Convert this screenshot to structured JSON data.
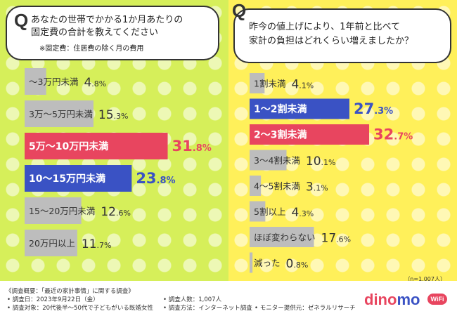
{
  "left": {
    "q_mark": "Q",
    "question_line1": "あなたの世帯でかかる1か月あたりの",
    "question_line2": "固定費の合計を教えてください",
    "note": "※固定費：住居費の除く月の費用"
  },
  "right": {
    "q_mark": "Q",
    "question_line1": "昨今の値上げにより、1年前と比べて",
    "question_line2": "家計の負担はどれくらい増えましたか？",
    "sample": "（n=1,007人）"
  },
  "colors": {
    "gray": "#bdbdbd",
    "red": "#e8455f",
    "blue": "#3a52c4"
  },
  "chart_data": [
    {
      "type": "bar",
      "orientation": "horizontal",
      "title": "あなたの世帯でかかる1か月あたりの固定費の合計",
      "unit": "%",
      "xlim": [
        0,
        35
      ],
      "categories": [
        "〜3万円未満",
        "3万〜5万円未満",
        "5万〜10万円未満",
        "10〜15万円未満",
        "15〜20万円未満",
        "20万円以上"
      ],
      "values": [
        4.8,
        15.3,
        31.8,
        23.8,
        12.6,
        11.7
      ],
      "highlight": [
        "none",
        "none",
        "red",
        "blue",
        "none",
        "none"
      ]
    },
    {
      "type": "bar",
      "orientation": "horizontal",
      "title": "1年前と比べた家計の負担の増加",
      "unit": "%",
      "xlim": [
        0,
        35
      ],
      "categories": [
        "1割未満",
        "1〜2割未満",
        "2〜3割未満",
        "3〜4割未満",
        "4〜5割未満",
        "5割以上",
        "ほぼ変わらない",
        "減った"
      ],
      "values": [
        4.1,
        27.3,
        32.7,
        10.1,
        3.1,
        4.3,
        17.6,
        0.8
      ],
      "highlight": [
        "none",
        "blue",
        "red",
        "none",
        "none",
        "none",
        "none",
        "none"
      ]
    }
  ],
  "footer": {
    "survey_title": "《調査概要：「最近の家計事情」に関する調査》",
    "date": "• 調査日：2023年9月22日（金）",
    "target": "• 調査対象：20代後半〜50代で子どもがいる既婚女性",
    "count": "• 調査人数：1,007人",
    "method": "• 調査方法：インターネット調査",
    "provider": "• モニター提供元：ゼネラルリサーチ"
  },
  "logo": {
    "part1": "dino",
    "part2": "mo",
    "badge": "WiFi"
  }
}
